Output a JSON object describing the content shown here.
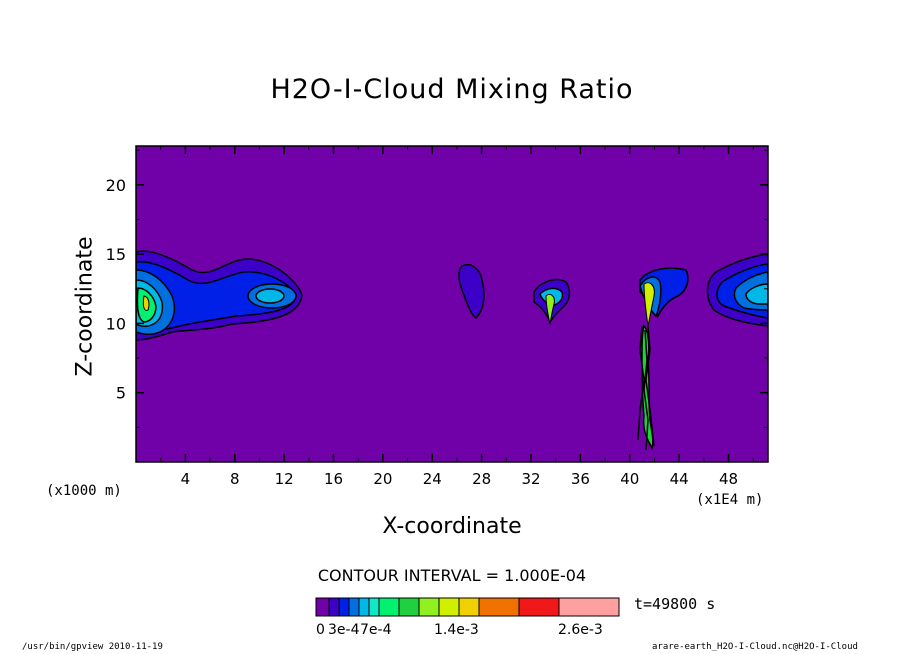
{
  "chart_data": {
    "type": "heatmap",
    "title": "H2O-I-Cloud Mixing Ratio",
    "xlabel": "X-coordinate",
    "ylabel": "Z-coordinate",
    "x_unit_left": "(x1000 m)",
    "x_unit_right": "(x1E4 m)",
    "xlim": [
      0,
      51.2
    ],
    "ylim": [
      0,
      22.8
    ],
    "x_ticks": [
      "4",
      "8",
      "12",
      "16",
      "20",
      "24",
      "28",
      "32",
      "36",
      "40",
      "44",
      "48"
    ],
    "y_ticks": [
      "5",
      "10",
      "15",
      "20"
    ],
    "x_tick_values": [
      4,
      8,
      12,
      16,
      20,
      24,
      28,
      32,
      36,
      40,
      44,
      48
    ],
    "y_tick_values": [
      5,
      10,
      15,
      20
    ],
    "contour_interval": "CONTOUR INTERVAL = 1.000E-04",
    "time": "t=49800 s",
    "legend": {
      "colors": [
        "#7000a8",
        "#3c00c8",
        "#0020e8",
        "#0070e0",
        "#00b8e8",
        "#10e8c8",
        "#00f070",
        "#20d040",
        "#90f020",
        "#d0f000",
        "#f0d000",
        "#f07000",
        "#f01818",
        "#ffa0a0"
      ],
      "labels": [
        "0",
        "3e-4",
        "7e-4",
        "1.4e-3",
        "2.6e-3"
      ]
    },
    "background_color": "#7000a8"
  },
  "footer": {
    "left": "/usr/bin/gpview   2010-11-19",
    "right": "arare-earth_H2O-I-Cloud.nc@H2O-I-Cloud"
  }
}
